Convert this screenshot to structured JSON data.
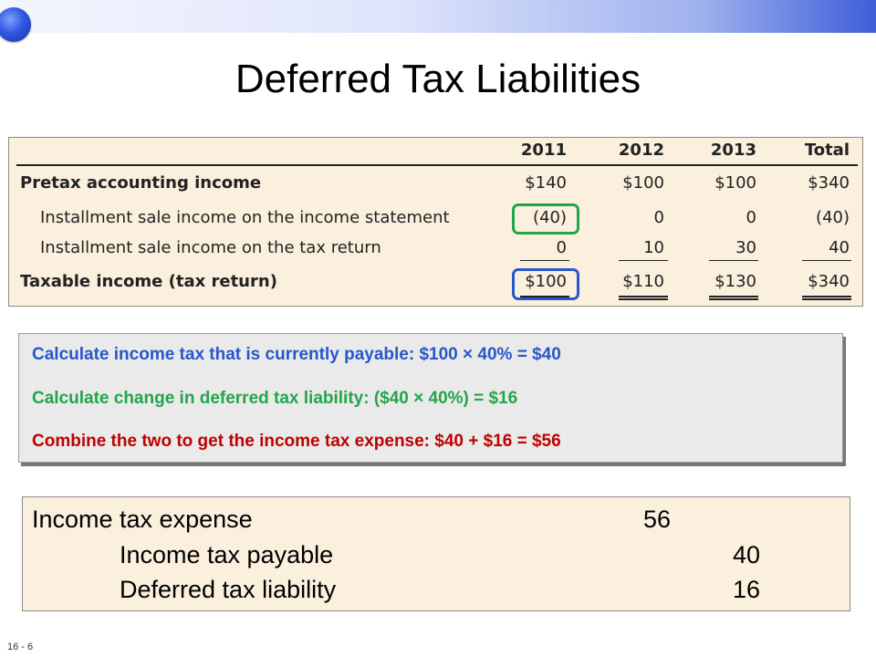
{
  "slide": {
    "title": "Deferred Tax Liabilities",
    "footer": "16 - 6",
    "colors": {
      "green": "#22a64a",
      "blue": "#2857c9",
      "red": "#c00000",
      "panel": "#fbefdd"
    }
  },
  "schedule": {
    "columns": [
      "2011",
      "2012",
      "2013",
      "Total"
    ],
    "rows": [
      {
        "label": "Pretax accounting income",
        "values": [
          "$140",
          "$100",
          "$100",
          "$340"
        ]
      },
      {
        "label": "Installment sale income on the income statement",
        "values": [
          "(40)",
          "0",
          "0",
          "(40)"
        ]
      },
      {
        "label": "Installment sale income on the tax return",
        "values": [
          "0",
          "10",
          "30",
          "40"
        ]
      },
      {
        "label": "Taxable income (tax return)",
        "values": [
          "$100",
          "$110",
          "$130",
          "$340"
        ]
      }
    ]
  },
  "calc": {
    "line1": "Calculate income tax that is currently payable:  $100 × 40% = $40",
    "line2": "Calculate change in deferred tax liability:  ($40 × 40%) = $16",
    "line3": "Combine the two to get the income tax expense: $40 + $16 = $56"
  },
  "entry": {
    "debit_label": "Income tax expense",
    "debit_amount": "56",
    "credit1_label": "Income tax payable",
    "credit1_amount": "40",
    "credit2_label": "Deferred tax liability",
    "credit2_amount": "16"
  }
}
